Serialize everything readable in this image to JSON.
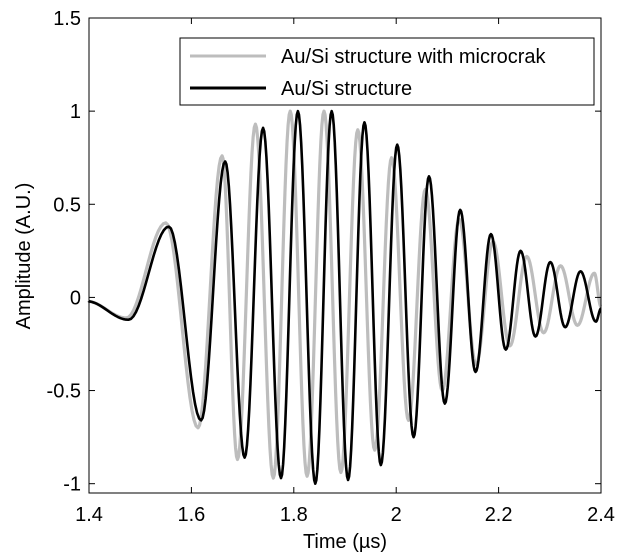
{
  "chart_data": {
    "type": "line",
    "title": "",
    "xlabel": "Time (µs)",
    "ylabel": "Amplitude (A.U.)",
    "xlim": [
      1.4,
      2.4
    ],
    "ylim": [
      -1.05,
      1.5
    ],
    "xticks": [
      "1.4",
      "1.6",
      "1.8",
      "2",
      "2.2",
      "2.4"
    ],
    "xtick_values": [
      1.4,
      1.6,
      1.8,
      2.0,
      2.2,
      2.4
    ],
    "yticks": [
      "-1",
      "-0.5",
      "0",
      "0.5",
      "1",
      "1.5"
    ],
    "ytick_values": [
      -1,
      -0.5,
      0,
      0.5,
      1,
      1.5
    ],
    "grid": false,
    "legend_position": "top-right",
    "series": [
      {
        "name": "Au/Si structure with microcrak",
        "color": "#bdbdbd",
        "peak_times": [
          1.395,
          1.473,
          1.55,
          1.613,
          1.66,
          1.69,
          1.725,
          1.76,
          1.793,
          1.826,
          1.859,
          1.892,
          1.925,
          1.958,
          1.991,
          2.024,
          2.057,
          2.09,
          2.123,
          2.156,
          2.189,
          2.222,
          2.255,
          2.288,
          2.321,
          2.354,
          2.387
        ],
        "peak_values": [
          -0.02,
          -0.11,
          0.4,
          -0.7,
          0.76,
          -0.87,
          0.93,
          -0.97,
          1.0,
          -0.96,
          1.0,
          -0.94,
          0.9,
          -0.82,
          0.75,
          -0.66,
          0.58,
          -0.5,
          0.42,
          -0.36,
          0.3,
          -0.26,
          0.22,
          -0.19,
          0.17,
          -0.15,
          0.13
        ],
        "end": [
          2.4,
          -0.05
        ]
      },
      {
        "name": "Au/Si structure",
        "color": "#000000",
        "peak_times": [
          1.395,
          1.477,
          1.556,
          1.619,
          1.666,
          1.704,
          1.74,
          1.775,
          1.808,
          1.842,
          1.874,
          1.906,
          1.938,
          1.97,
          2.002,
          2.034,
          2.064,
          2.095,
          2.125,
          2.155,
          2.185,
          2.214,
          2.243,
          2.272,
          2.301,
          2.33,
          2.36,
          2.39
        ],
        "peak_values": [
          -0.02,
          -0.12,
          0.38,
          -0.66,
          0.73,
          -0.86,
          0.91,
          -0.97,
          1.0,
          -1.0,
          1.0,
          -0.98,
          0.94,
          -0.9,
          0.82,
          -0.75,
          0.65,
          -0.57,
          0.47,
          -0.4,
          0.34,
          -0.28,
          0.25,
          -0.21,
          0.19,
          -0.16,
          0.14,
          -0.13
        ],
        "end": [
          2.4,
          -0.06
        ]
      }
    ]
  }
}
